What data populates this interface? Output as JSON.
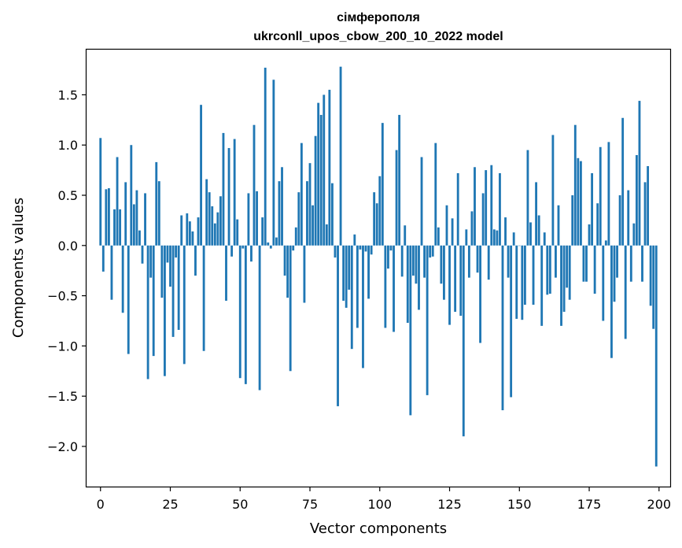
{
  "chart_data": {
    "type": "bar",
    "title": "сімферополя",
    "subtitle": "ukrconll_upos_cbow_200_10_2022 model",
    "xlabel": "Vector components",
    "ylabel": "Components values",
    "xlim": [
      -5,
      204
    ],
    "ylim": [
      -2.4,
      1.95
    ],
    "xticks": [
      0,
      25,
      50,
      75,
      100,
      125,
      150,
      175,
      200
    ],
    "yticks": [
      -2.0,
      -1.5,
      -1.0,
      -0.5,
      0.0,
      0.5,
      1.0,
      1.5
    ],
    "xtick_labels": [
      "0",
      "25",
      "50",
      "75",
      "100",
      "125",
      "150",
      "175",
      "200"
    ],
    "ytick_labels": [
      "−2.0",
      "−1.5",
      "−1.0",
      "−0.5",
      "0.0",
      "0.5",
      "1.0",
      "1.5"
    ],
    "bar_color": "#1f77b4",
    "values": [
      1.07,
      -0.26,
      0.56,
      0.57,
      -0.54,
      0.36,
      0.88,
      0.36,
      -0.67,
      0.63,
      -1.08,
      1.0,
      0.41,
      0.55,
      0.15,
      -0.18,
      0.52,
      -1.33,
      -0.32,
      -1.1,
      0.83,
      0.64,
      -0.52,
      -1.3,
      -0.17,
      -0.41,
      -0.91,
      -0.12,
      -0.84,
      0.3,
      -1.18,
      0.32,
      0.24,
      0.14,
      -0.3,
      0.28,
      1.4,
      -1.05,
      0.66,
      0.53,
      0.39,
      0.22,
      0.33,
      0.49,
      1.12,
      -0.55,
      0.97,
      -0.11,
      1.06,
      0.26,
      -1.32,
      -0.03,
      -1.38,
      0.52,
      -0.16,
      1.2,
      0.54,
      -1.44,
      0.28,
      1.77,
      0.03,
      -0.03,
      1.65,
      0.08,
      0.64,
      0.78,
      -0.3,
      -0.52,
      -1.25,
      -0.05,
      0.18,
      0.53,
      1.02,
      -0.57,
      0.64,
      0.82,
      0.4,
      1.09,
      1.42,
      1.3,
      1.5,
      0.21,
      1.55,
      0.62,
      -0.12,
      -1.6,
      1.78,
      -0.55,
      -0.62,
      -0.44,
      -1.03,
      0.11,
      -0.82,
      -0.04,
      -1.22,
      -0.06,
      -0.53,
      -0.09,
      0.53,
      0.42,
      0.69,
      1.22,
      -0.82,
      -0.23,
      -0.05,
      -0.86,
      0.95,
      1.3,
      -0.31,
      0.2,
      -0.77,
      -1.69,
      -0.3,
      -0.38,
      -0.64,
      0.88,
      -0.32,
      -1.49,
      -0.12,
      -0.11,
      1.02,
      0.18,
      -0.38,
      -0.54,
      0.4,
      -0.79,
      0.27,
      -0.66,
      0.72,
      -0.7,
      -1.9,
      0.16,
      -0.32,
      0.34,
      0.78,
      -0.27,
      -0.97,
      0.52,
      0.75,
      -0.34,
      0.8,
      0.16,
      0.15,
      0.72,
      -1.64,
      0.28,
      -0.32,
      -1.51,
      0.13,
      -0.73,
      0.0,
      -0.74,
      -0.59,
      0.95,
      0.23,
      -0.59,
      0.63,
      0.3,
      -0.8,
      0.13,
      -0.49,
      -0.48,
      1.1,
      -0.32,
      0.4,
      -0.8,
      -0.66,
      -0.42,
      -0.54,
      0.5,
      1.2,
      0.87,
      0.84,
      -0.36,
      -0.36,
      0.21,
      0.72,
      -0.48,
      0.42,
      0.98,
      -0.75,
      0.05,
      1.03,
      -1.12,
      -0.56,
      -0.32,
      0.5,
      1.27,
      -0.93,
      0.55,
      -0.36,
      0.22,
      0.9,
      1.44,
      -0.36,
      0.63,
      0.79,
      -0.6,
      -0.83,
      -2.2
    ]
  }
}
